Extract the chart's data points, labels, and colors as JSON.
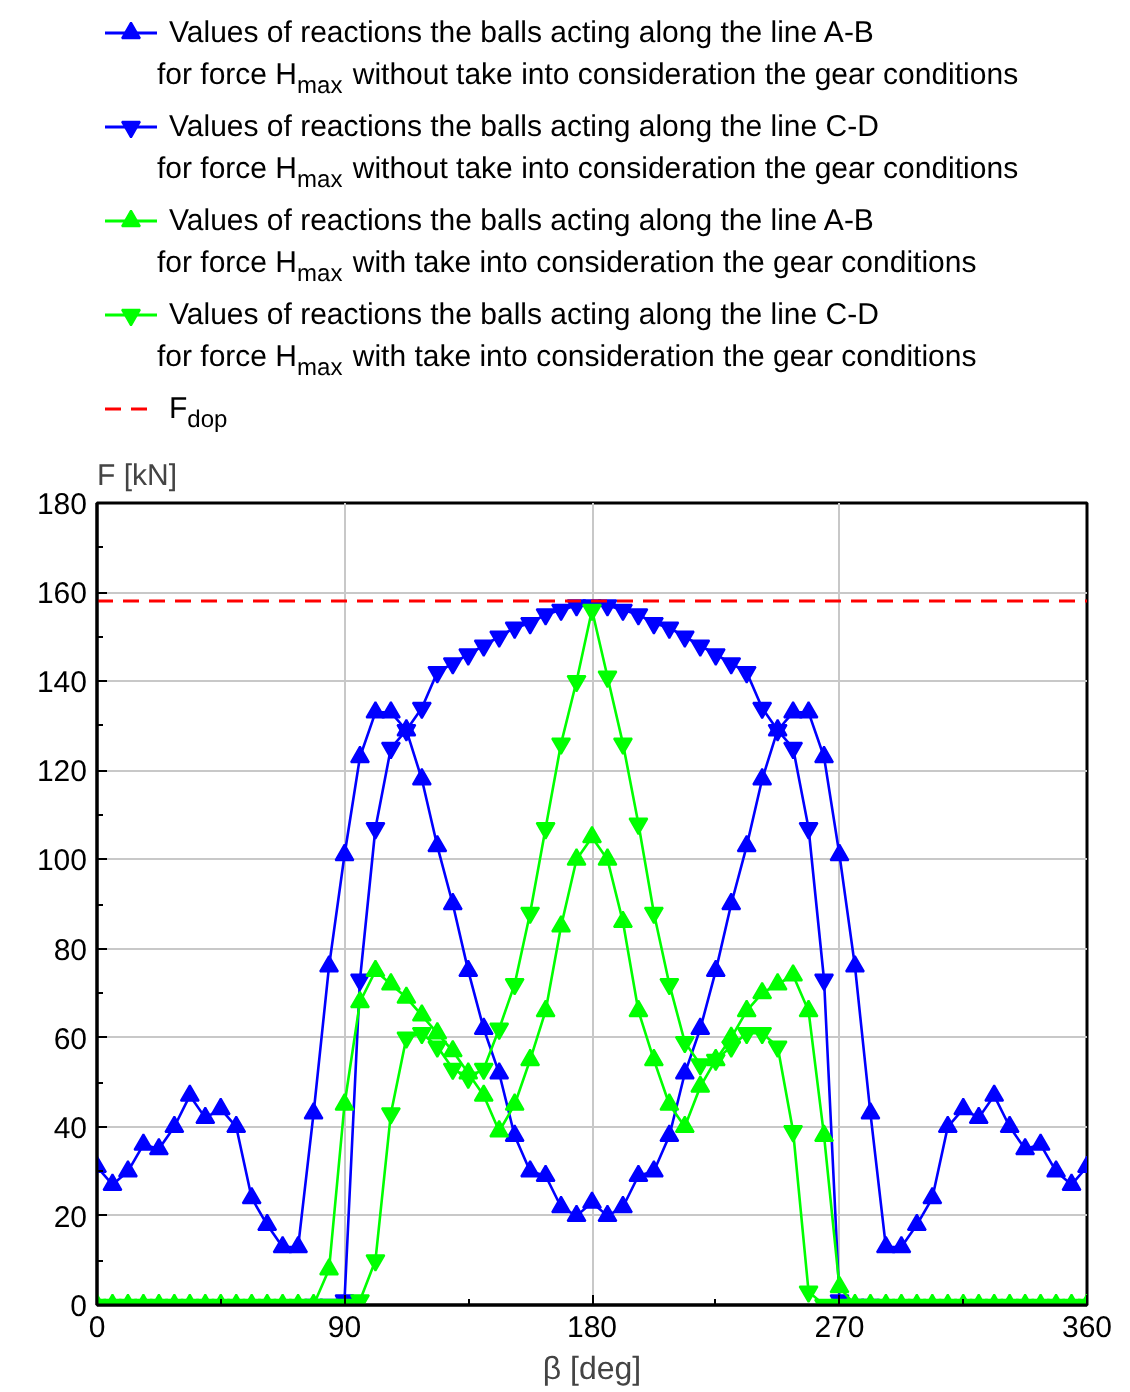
{
  "chart_data": {
    "type": "line",
    "xlabel": "β [deg]",
    "ylabel": "F [kN]",
    "x": [
      0,
      5.625,
      11.25,
      16.875,
      22.5,
      28.125,
      33.75,
      39.375,
      45,
      50.625,
      56.25,
      61.875,
      67.5,
      73.125,
      78.75,
      84.375,
      90,
      95.625,
      101.25,
      106.875,
      112.5,
      118.125,
      123.75,
      129.375,
      135,
      140.625,
      146.25,
      151.875,
      157.5,
      163.125,
      168.75,
      174.375,
      180,
      185.625,
      191.25,
      196.875,
      202.5,
      208.125,
      213.75,
      219.375,
      225,
      230.625,
      236.25,
      241.875,
      247.5,
      253.125,
      258.75,
      264.375,
      270,
      275.625,
      281.25,
      286.875,
      292.5,
      298.125,
      303.75,
      309.375,
      315,
      320.625,
      326.25,
      331.875,
      337.5,
      343.125,
      348.75,
      354.375,
      360
    ],
    "series": [
      {
        "name": "Values of reactions the balls acting along the line A-B\nfor force H$_{max}$ without take into consideration the gear conditions",
        "color": "#0000ff",
        "marker": "triangle",
        "values": [
          31,
          27,
          30,
          36,
          35,
          40,
          47,
          42,
          44,
          40,
          24,
          18,
          13,
          13,
          43,
          76,
          101,
          123,
          133,
          133,
          129,
          118,
          103,
          90,
          75,
          62,
          52,
          38,
          30,
          29,
          22,
          20,
          23,
          20,
          22,
          29,
          30,
          38,
          52,
          62,
          75,
          90,
          103,
          118,
          129,
          133,
          133,
          123,
          101,
          76,
          43,
          13,
          13,
          18,
          24,
          40,
          44,
          42,
          47,
          40,
          35,
          36,
          30,
          27,
          31
        ]
      },
      {
        "name": "Values of reactions the balls acting along the line C-D\nfor force H$_{max}$ without take into consideration the gear conditions",
        "color": "#0000ff",
        "marker": "triangle_down",
        "values": [
          null,
          null,
          null,
          null,
          null,
          null,
          null,
          null,
          null,
          null,
          null,
          null,
          null,
          null,
          0,
          0,
          1,
          73,
          107,
          125,
          129,
          134,
          142,
          144,
          146,
          148,
          150,
          152,
          153,
          155,
          156,
          157,
          157,
          157,
          156,
          155,
          153,
          152,
          150,
          148,
          146,
          144,
          142,
          134,
          129,
          125,
          107,
          73,
          1,
          0,
          0,
          null,
          null,
          null,
          null,
          null,
          null,
          null,
          null,
          null,
          null,
          null,
          null,
          null,
          null
        ]
      },
      {
        "name": "Values of reactions the balls acting along the line A-B\nfor force H$_{max}$ with take into consideration the gear conditions",
        "color": "#00ff00",
        "marker": "triangle",
        "values": [
          0,
          0,
          0,
          0,
          0,
          0,
          0,
          0,
          0,
          0,
          0,
          0,
          0,
          0,
          0,
          8,
          45,
          68,
          75,
          72,
          69,
          65,
          61,
          57,
          52,
          47,
          39,
          45,
          55,
          66,
          85,
          100,
          105,
          100,
          86,
          66,
          55,
          45,
          40,
          49,
          55,
          60,
          66,
          70,
          72,
          74,
          66,
          38,
          4,
          0,
          0,
          0,
          0,
          0,
          0,
          0,
          0,
          0,
          0,
          0,
          0,
          0,
          0,
          0,
          0
        ]
      },
      {
        "name": "Values of reactions the balls acting along the line C-D\nfor force H$_{max}$ with take into consideration the gear conditions",
        "color": "#00ff00",
        "marker": "triangle_down",
        "values": [
          0,
          0,
          0,
          0,
          0,
          0,
          0,
          0,
          0,
          0,
          0,
          0,
          0,
          0,
          0,
          0,
          0,
          1,
          10,
          43,
          60,
          61,
          58,
          53,
          51,
          53,
          62,
          72,
          88,
          107,
          126,
          140,
          156,
          141,
          126,
          108,
          88,
          72,
          59,
          54,
          55,
          58,
          61,
          61,
          58,
          39,
          3,
          0,
          0,
          0,
          0,
          0,
          0,
          0,
          0,
          0,
          0,
          0,
          0,
          0,
          0,
          0,
          0,
          0,
          0
        ]
      }
    ],
    "ref_lines": [
      {
        "axis": "y",
        "value": 158,
        "label": "F$_{dop}$",
        "color": "#ff0000",
        "line_style": "dashed"
      }
    ],
    "xlim": [
      0,
      360
    ],
    "xticks": [
      0,
      90,
      180,
      270,
      360
    ],
    "ylim": [
      0,
      180
    ],
    "yticks": [
      0,
      20,
      40,
      60,
      80,
      100,
      120,
      140,
      160,
      180
    ],
    "grid": true,
    "legend": "top",
    "line_style": "solid"
  }
}
